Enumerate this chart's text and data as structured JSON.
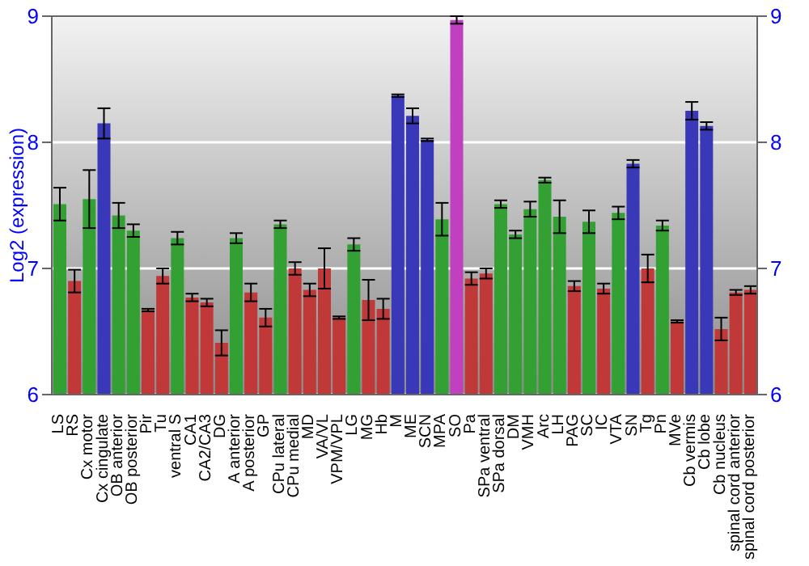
{
  "chart_data": {
    "type": "bar",
    "ylabel": "Log2 (expression)",
    "categories": [
      "LS",
      "RS",
      "Cx motor",
      "Cx cingulate",
      "OB anterior",
      "OB posterior",
      "Pir",
      "Tu",
      "ventral S",
      "CA1",
      "CA2/CA3",
      "DG",
      "A anterior",
      "A posterior",
      "GP",
      "CPu lateral",
      "CPu medial",
      "MD",
      "VA/VL",
      "VPM/VPL",
      "LG",
      "MG",
      "Hb",
      "M",
      "ME",
      "SCN",
      "MPA",
      "SO",
      "Pa",
      "SPa ventral",
      "SPa dorsal",
      "DM",
      "VMH",
      "Arc",
      "LH",
      "PAG",
      "SC",
      "IC",
      "VTA",
      "SN",
      "Tg",
      "Pn",
      "MVe",
      "Cb vermis",
      "Cb lobe",
      "Cb nucleus",
      "spinal cord anterior",
      "spinal cord posterior"
    ],
    "values": [
      7.51,
      6.9,
      7.55,
      8.15,
      7.42,
      7.3,
      6.67,
      6.94,
      7.24,
      6.77,
      6.73,
      6.41,
      7.24,
      6.81,
      6.61,
      7.35,
      7.0,
      6.83,
      7.0,
      6.61,
      7.19,
      6.75,
      6.68,
      8.37,
      8.21,
      8.02,
      7.39,
      8.97,
      6.92,
      6.96,
      7.51,
      7.27,
      7.47,
      7.7,
      7.41,
      6.86,
      7.37,
      6.84,
      7.44,
      7.83,
      7.0,
      7.34,
      6.58,
      8.25,
      8.13,
      6.52,
      6.81,
      6.83
    ],
    "errors": [
      0.13,
      0.09,
      0.23,
      0.12,
      0.1,
      0.05,
      0.01,
      0.06,
      0.05,
      0.03,
      0.03,
      0.1,
      0.04,
      0.07,
      0.07,
      0.03,
      0.05,
      0.05,
      0.16,
      0.01,
      0.05,
      0.16,
      0.08,
      0.01,
      0.06,
      0.01,
      0.13,
      0.03,
      0.05,
      0.04,
      0.03,
      0.03,
      0.06,
      0.02,
      0.13,
      0.04,
      0.09,
      0.04,
      0.05,
      0.03,
      0.11,
      0.04,
      0.01,
      0.07,
      0.03,
      0.09,
      0.02,
      0.03
    ],
    "colors": [
      "#33a033",
      "#c03838",
      "#33a033",
      "#3838b8",
      "#33a033",
      "#33a033",
      "#c03838",
      "#c03838",
      "#33a033",
      "#c03838",
      "#c03838",
      "#c03838",
      "#33a033",
      "#c03838",
      "#c03838",
      "#33a033",
      "#c03838",
      "#c03838",
      "#c03838",
      "#c03838",
      "#33a033",
      "#c03838",
      "#c03838",
      "#3838b8",
      "#3838b8",
      "#3838b8",
      "#33a033",
      "#c040c0",
      "#c03838",
      "#c03838",
      "#33a033",
      "#33a033",
      "#33a033",
      "#33a033",
      "#33a033",
      "#c03838",
      "#33a033",
      "#c03838",
      "#33a033",
      "#3838b8",
      "#c03838",
      "#33a033",
      "#c03838",
      "#3838b8",
      "#3838b8",
      "#c03838",
      "#c03838",
      "#c03838"
    ],
    "ylim": [
      6,
      9
    ],
    "yticks": [
      6,
      7,
      8,
      9
    ],
    "y2lim": [
      6,
      9
    ],
    "y2ticks": [
      6,
      7,
      8,
      9
    ],
    "grid": "y"
  }
}
